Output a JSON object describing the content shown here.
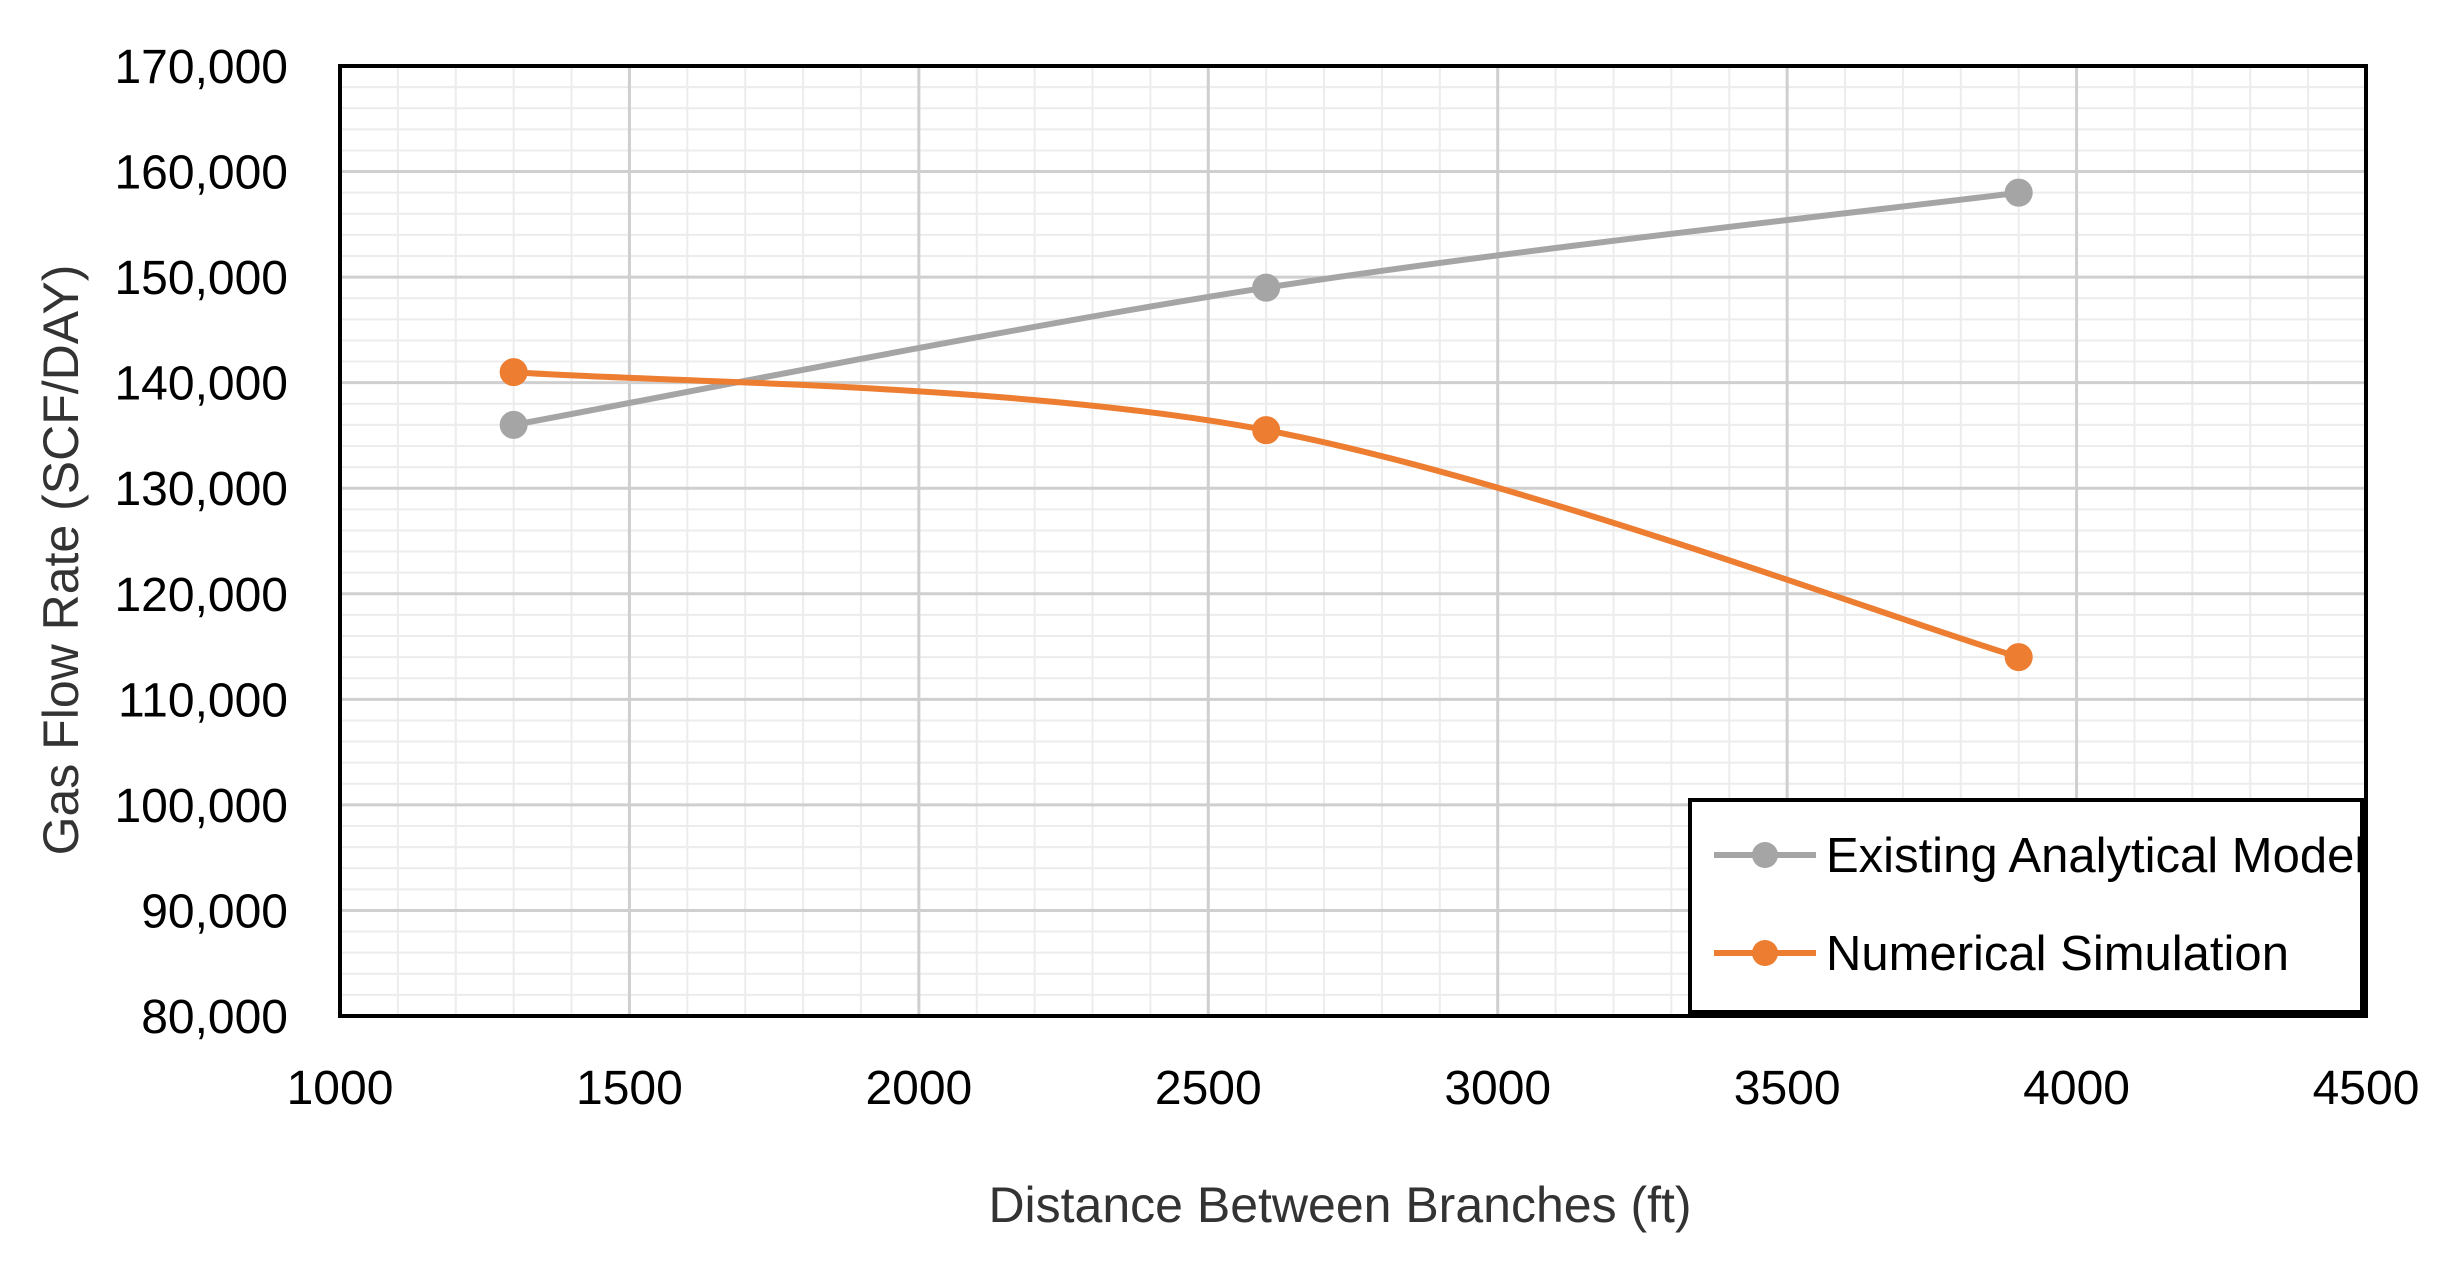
{
  "chart_data": {
    "type": "line",
    "title": "",
    "xlabel": "Distance Between Branches (ft)",
    "ylabel": "Gas Flow Rate (SCF/DAY)",
    "xlim": [
      1000,
      4500
    ],
    "ylim": [
      80000,
      170000
    ],
    "x_ticks": [
      1000,
      1500,
      2000,
      2500,
      3000,
      3500,
      4000,
      4500
    ],
    "y_ticks": [
      80000,
      90000,
      100000,
      110000,
      120000,
      130000,
      140000,
      150000,
      160000,
      170000
    ],
    "x_tick_labels": [
      "1000",
      "1500",
      "2000",
      "2500",
      "3000",
      "3500",
      "4000",
      "4500"
    ],
    "y_tick_labels": [
      "80,000",
      "90,000",
      "100,000",
      "110,000",
      "120,000",
      "130,000",
      "140,000",
      "150,000",
      "160,000",
      "170,000"
    ],
    "grid": {
      "major": true,
      "minor": true
    },
    "smooth_lines": true,
    "legend": {
      "position": "bottom-right"
    },
    "series": [
      {
        "name": "Existing Analytical Model",
        "color": "#a5a5a5",
        "x": [
          1300,
          2600,
          3900
        ],
        "y": [
          136000,
          149000,
          158000
        ]
      },
      {
        "name": "Numerical Simulation",
        "color": "#ed7d31",
        "x": [
          1300,
          2600,
          3900
        ],
        "y": [
          141000,
          135500,
          114000
        ]
      }
    ]
  }
}
